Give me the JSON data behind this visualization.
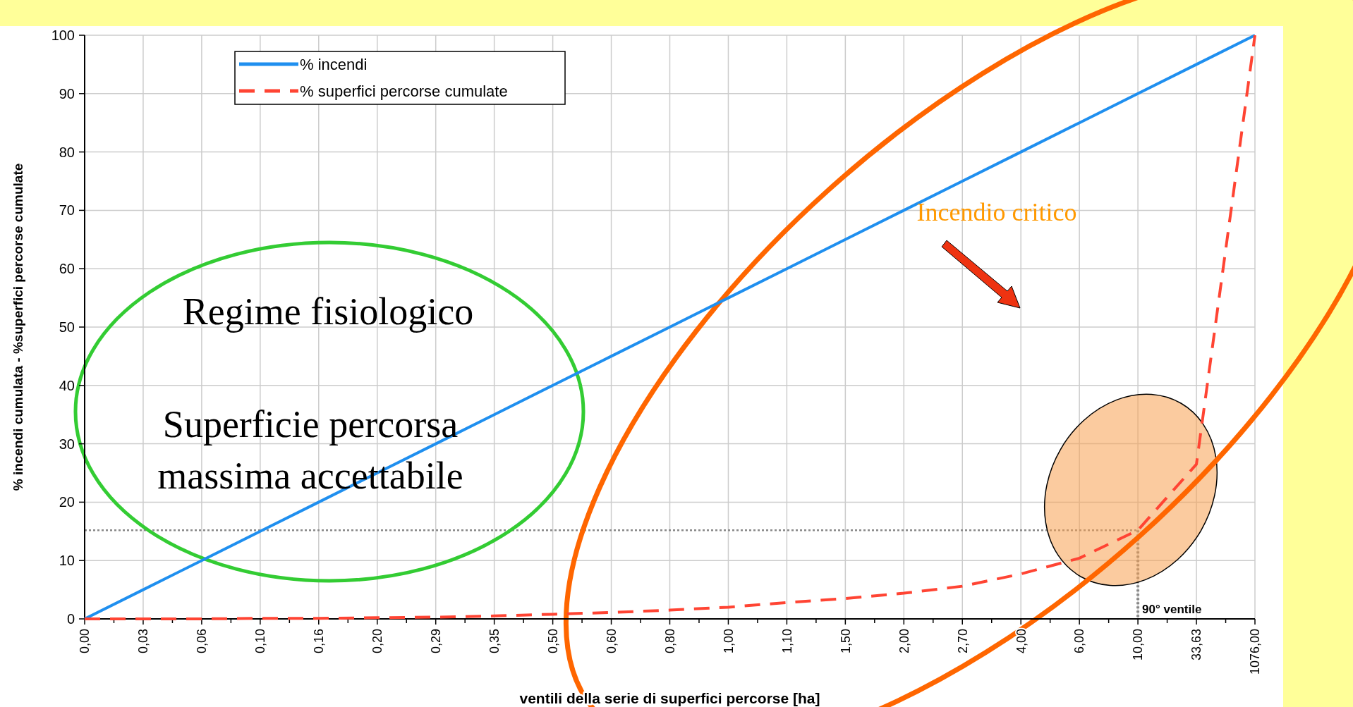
{
  "chart_data": {
    "type": "line",
    "xlabel": "ventili della serie di superfici percorse [ha]",
    "ylabel": "% incendi cumulata - %superfici percorse cumulate",
    "categories": [
      "0,00",
      "0,03",
      "0,06",
      "0,10",
      "0,16",
      "0,20",
      "0,29",
      "0,35",
      "0,50",
      "0,60",
      "0,80",
      "1,00",
      "1,10",
      "1,50",
      "2,00",
      "2,70",
      "4,00",
      "6,00",
      "10,00",
      "33,63",
      "1076,00"
    ],
    "series": [
      {
        "name": "% incendi",
        "color": "#1f8fef",
        "line_style": "solid",
        "values": [
          0,
          5,
          10,
          15,
          20,
          25,
          30,
          35,
          40,
          45,
          50,
          55,
          60,
          65,
          70,
          75,
          80,
          85,
          90,
          95,
          100
        ]
      },
      {
        "name": "% superfici percorse cumulate",
        "color": "#ff4433",
        "line_style": "dashed",
        "values": [
          0,
          0,
          0,
          0.1,
          0.1,
          0.2,
          0.3,
          0.5,
          0.8,
          1.1,
          1.5,
          2.0,
          2.8,
          3.5,
          4.4,
          5.6,
          7.7,
          10.4,
          15.2,
          26.5,
          100
        ]
      }
    ],
    "ylim": [
      0,
      100
    ],
    "yticks": [
      0,
      10,
      20,
      30,
      40,
      50,
      60,
      70,
      80,
      90,
      100
    ],
    "grid": true,
    "legend": "top left",
    "ref_lines": [
      {
        "axis": "y",
        "value": 15.2,
        "color": "#888888",
        "line_style": "dotted"
      },
      {
        "axis": "x",
        "value": "10,00",
        "label": "90° ventile",
        "color": "#888888",
        "line_style": "dotted"
      }
    ],
    "annotations": [
      "Regime fisiologico",
      "Superficie percorsa\nmassima accettabile",
      "Incendio critico"
    ]
  }
}
